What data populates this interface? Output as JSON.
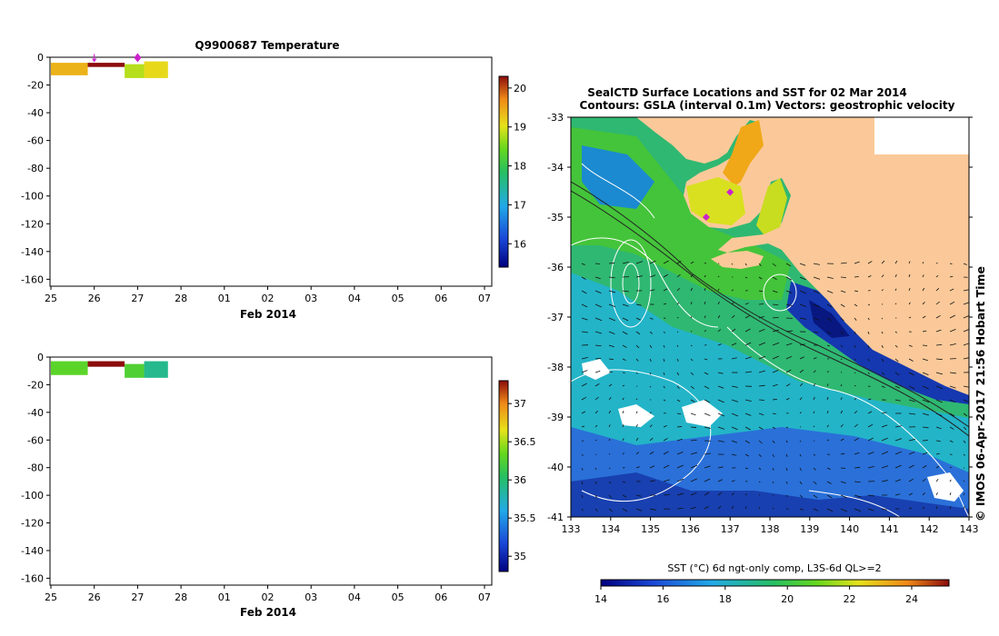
{
  "chart_data": [
    {
      "type": "heatmap",
      "title": "Q9900687  Temperature",
      "xlabel": "Feb 2014",
      "x_ticks": [
        "25",
        "26",
        "27",
        "28",
        "01",
        "02",
        "03",
        "04",
        "05",
        "06",
        "07"
      ],
      "y_ticks": [
        "0",
        "-20",
        "-40",
        "-60",
        "-80",
        "-100",
        "-120",
        "-140",
        "-160"
      ],
      "ylim": [
        -165,
        0
      ],
      "colorbar": {
        "min": 15.4,
        "max": 20.3,
        "ticks": [
          "16",
          "17",
          "18",
          "19",
          "20"
        ],
        "tick_values": [
          16,
          17,
          18,
          19,
          20
        ]
      },
      "profiles": [
        {
          "x_start": 25.0,
          "x_end": 25.85,
          "depth_top": -4,
          "depth_bottom": -13,
          "value": 19.4
        },
        {
          "x_start": 25.85,
          "x_end": 26.7,
          "depth_top": -4,
          "depth_bottom": -7,
          "value": 20.3
        },
        {
          "x_start": 26.7,
          "x_end": 27.15,
          "depth_top": -5,
          "depth_bottom": -15,
          "value": 18.8
        },
        {
          "x_start": 27.15,
          "x_end": 27.7,
          "depth_top": -3,
          "depth_bottom": -15,
          "value": 19.1
        }
      ],
      "markers": [
        {
          "x": 26.0,
          "shape": "plus"
        },
        {
          "x": 27.0,
          "shape": "diamond"
        }
      ]
    },
    {
      "type": "heatmap",
      "title": "",
      "xlabel": "Feb 2014",
      "x_ticks": [
        "25",
        "26",
        "27",
        "28",
        "01",
        "02",
        "03",
        "04",
        "05",
        "06",
        "07"
      ],
      "y_ticks": [
        "0",
        "-20",
        "-40",
        "-60",
        "-80",
        "-100",
        "-120",
        "-140",
        "-160"
      ],
      "ylim": [
        -165,
        0
      ],
      "colorbar": {
        "min": 34.8,
        "max": 37.3,
        "ticks": [
          "35",
          "35.5",
          "36",
          "36.5",
          "37"
        ],
        "tick_values": [
          35,
          35.5,
          36,
          36.5,
          37
        ]
      },
      "profiles": [
        {
          "x_start": 25.0,
          "x_end": 25.85,
          "depth_top": -3,
          "depth_bottom": -13,
          "value": 36.3
        },
        {
          "x_start": 25.85,
          "x_end": 26.7,
          "depth_top": -3,
          "depth_bottom": -7,
          "value": 37.3
        },
        {
          "x_start": 26.7,
          "x_end": 27.15,
          "depth_top": -5,
          "depth_bottom": -15,
          "value": 36.25
        },
        {
          "x_start": 27.15,
          "x_end": 27.7,
          "depth_top": -3,
          "depth_bottom": -15,
          "value": 35.9
        }
      ]
    },
    {
      "type": "heatmap",
      "title_line1": "SealCTD Surface Locations and SST for 02 Mar 2014",
      "title_line2": "Contours: GSLA (interval 0.1m) Vectors: geostrophic velocity",
      "x_ticks": [
        "133",
        "134",
        "135",
        "136",
        "137",
        "138",
        "139",
        "140",
        "141",
        "142",
        "143"
      ],
      "y_ticks": [
        "-33",
        "-34",
        "-35",
        "-36",
        "-37",
        "-38",
        "-39",
        "-40",
        "-41"
      ],
      "xlim": [
        133,
        143
      ],
      "ylim": [
        -41,
        -33
      ],
      "credit": "© IMOS 06-Apr-2017 21:56 Hobart Time",
      "colorbar": {
        "label": "SST (°C) 6d ngt-only comp, L3S-6d QL>=2",
        "min": 14,
        "max": 25.2,
        "ticks": [
          "14",
          "16",
          "18",
          "20",
          "22",
          "24"
        ],
        "tick_values": [
          14,
          16,
          18,
          20,
          22,
          24
        ]
      },
      "seal_locations": [
        {
          "lon": 137.0,
          "lat": -34.5
        },
        {
          "lon": 136.4,
          "lat": -35.0
        }
      ]
    }
  ],
  "colors": {
    "land": "#fbc999",
    "marker": "#cc22cc",
    "ocean_mid": "#2fb06a",
    "ocean_cold": "#1840b0"
  }
}
